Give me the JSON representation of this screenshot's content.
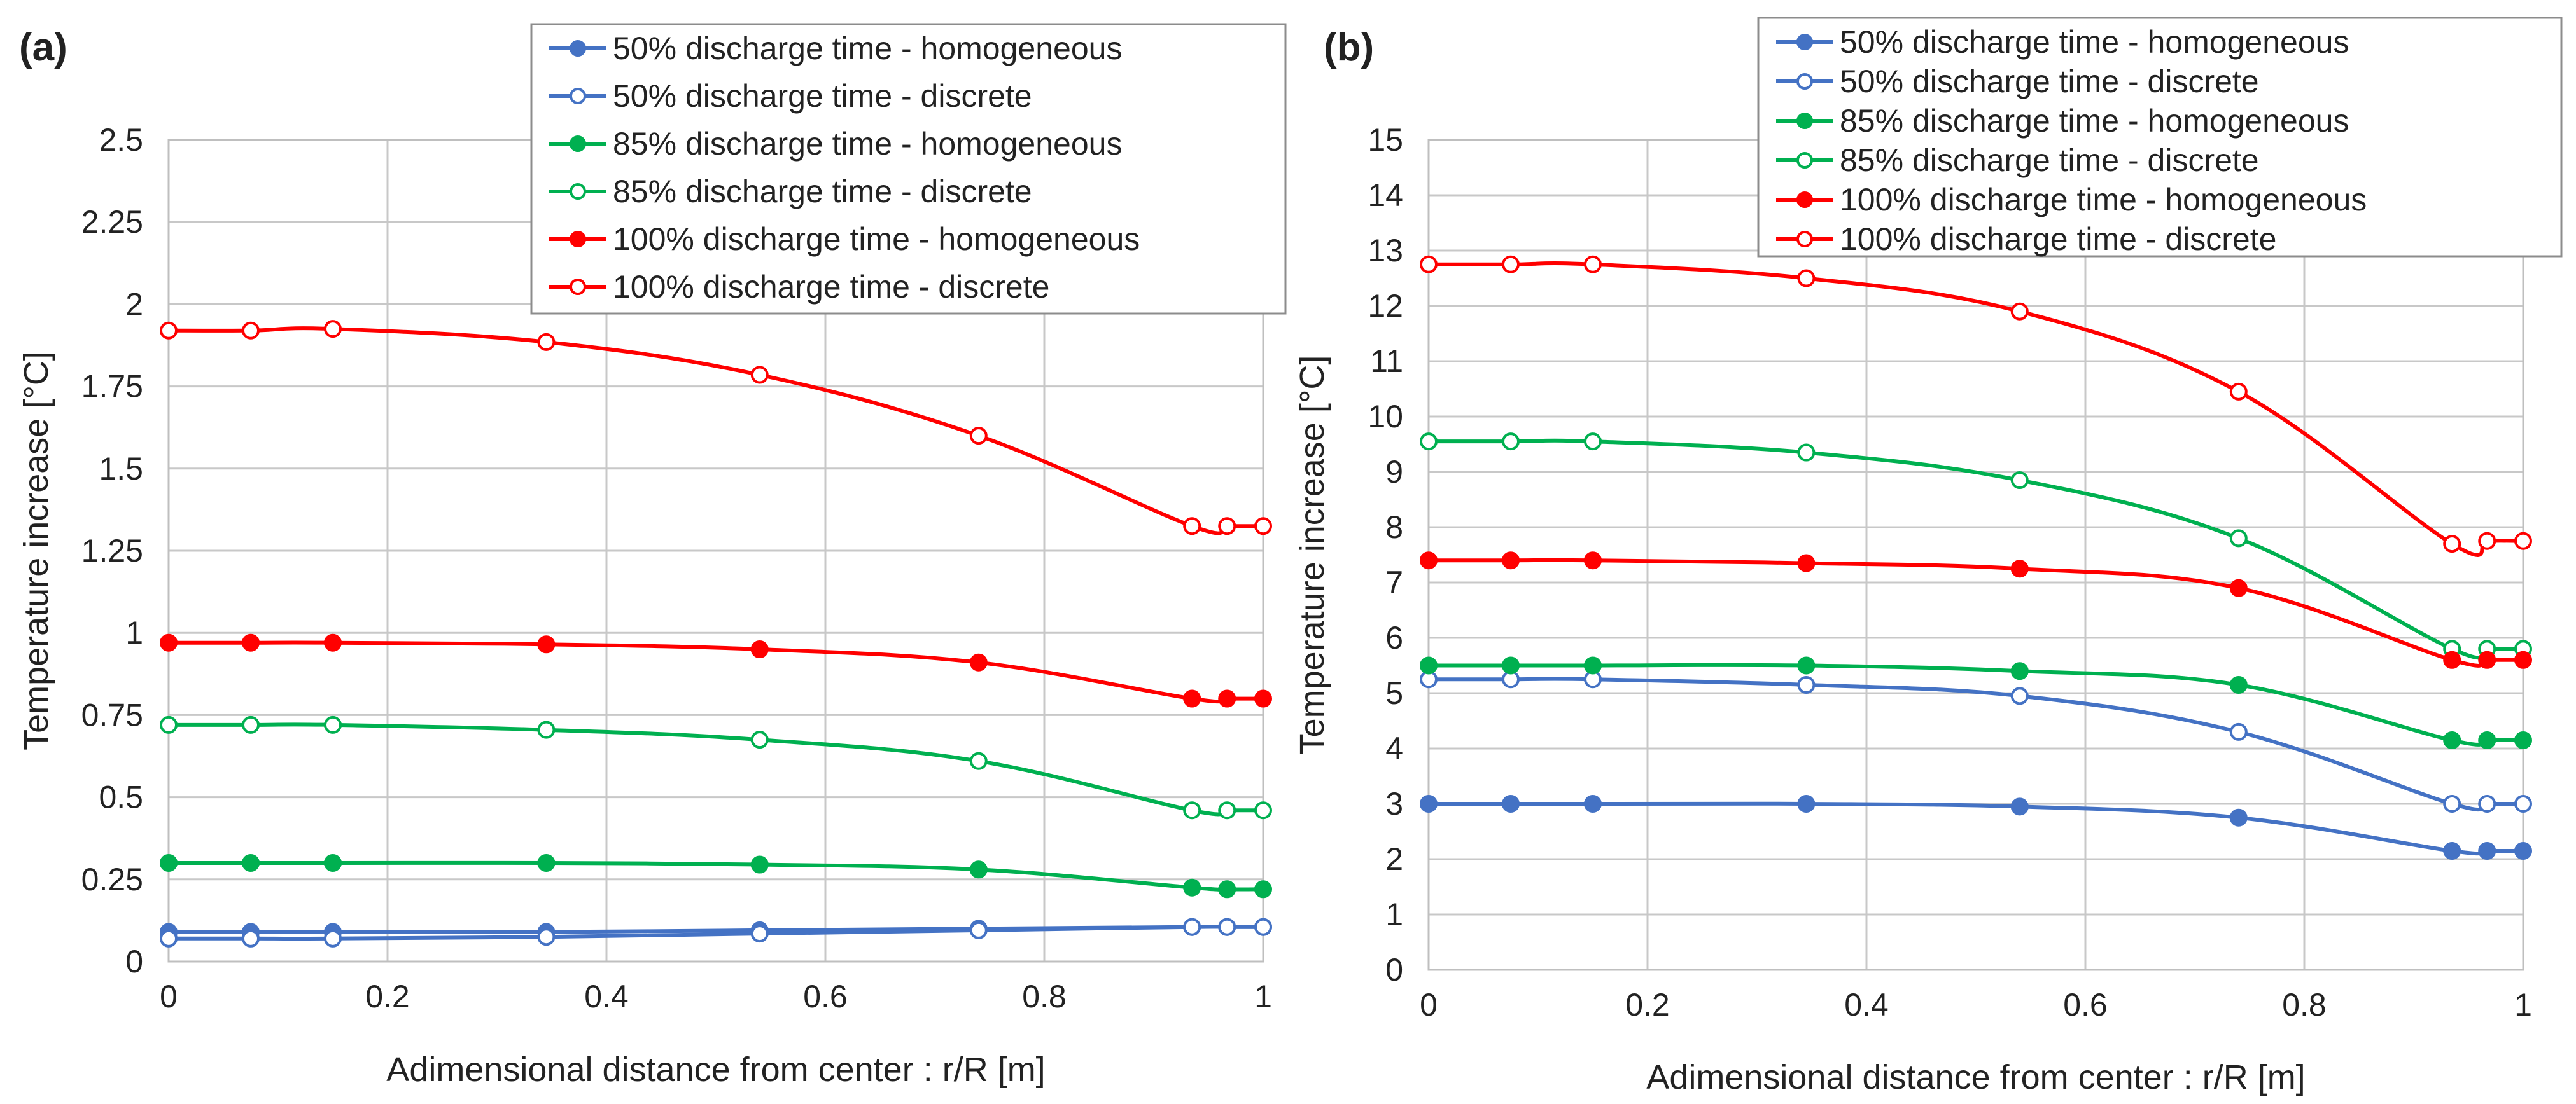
{
  "chart_data": [
    {
      "type": "line",
      "panel_label": "(a)",
      "title": "",
      "xlabel": "Adimensional distance from center : r/R [m]",
      "ylabel": "Temperature  increase [°C]",
      "xlim": [
        0,
        1
      ],
      "ylim": [
        0,
        2.5
      ],
      "x_ticks": [
        0,
        0.2,
        0.4,
        0.6,
        0.8,
        1
      ],
      "x_tick_labels": [
        "0",
        "0.2",
        "0.4",
        "0.6",
        "0.8",
        "1"
      ],
      "y_ticks": [
        0,
        0.25,
        0.5,
        0.75,
        1,
        1.25,
        1.5,
        1.75,
        2,
        2.25,
        2.5
      ],
      "y_tick_labels": [
        "0",
        "0.25",
        "0.5",
        "0.75",
        "1",
        "1.25",
        "1.5",
        "1.75",
        "2",
        "2.25",
        "2.5"
      ],
      "grid": true,
      "legend_position": "top-right",
      "x": [
        0,
        0.075,
        0.15,
        0.345,
        0.54,
        0.74,
        0.935,
        0.967,
        1
      ],
      "series": [
        {
          "name": "50% discharge time -  homogeneous",
          "color": "#4472C4",
          "marker": "filled",
          "values": [
            0.09,
            0.09,
            0.09,
            0.09,
            0.095,
            0.1,
            0.105,
            0.105,
            0.105
          ]
        },
        {
          "name": "50% discharge time - discrete",
          "color": "#4472C4",
          "marker": "open",
          "values": [
            0.07,
            0.07,
            0.07,
            0.075,
            0.085,
            0.095,
            0.105,
            0.105,
            0.105
          ]
        },
        {
          "name": "85% discharge time - homogeneous",
          "color": "#00B050",
          "marker": "filled",
          "values": [
            0.3,
            0.3,
            0.3,
            0.3,
            0.295,
            0.28,
            0.225,
            0.22,
            0.22
          ]
        },
        {
          "name": "85% discharge time - discrete",
          "color": "#00B050",
          "marker": "open",
          "values": [
            0.72,
            0.72,
            0.72,
            0.705,
            0.675,
            0.61,
            0.46,
            0.46,
            0.46
          ]
        },
        {
          "name": "100% discharge time - homogeneous",
          "color": "#FF0000",
          "marker": "filled",
          "values": [
            0.97,
            0.97,
            0.97,
            0.965,
            0.95,
            0.91,
            0.8,
            0.8,
            0.8
          ]
        },
        {
          "name": "100% discharge time - discrete",
          "color": "#FF0000",
          "marker": "open",
          "values": [
            1.92,
            1.92,
            1.925,
            1.885,
            1.785,
            1.6,
            1.325,
            1.325,
            1.325
          ]
        }
      ]
    },
    {
      "type": "line",
      "panel_label": "(b)",
      "title": "",
      "xlabel": "Adimensional distance from center : r/R [m]",
      "ylabel": "Temperature  increase [°C]",
      "xlim": [
        0,
        1
      ],
      "ylim": [
        0,
        15
      ],
      "x_ticks": [
        0,
        0.2,
        0.4,
        0.6,
        0.8,
        1
      ],
      "x_tick_labels": [
        "0",
        "0.2",
        "0.4",
        "0.6",
        "0.8",
        "1"
      ],
      "y_ticks": [
        0,
        1,
        2,
        3,
        4,
        5,
        6,
        7,
        8,
        9,
        10,
        11,
        12,
        13,
        14,
        15
      ],
      "y_tick_labels": [
        "0",
        "1",
        "2",
        "3",
        "4",
        "5",
        "6",
        "7",
        "8",
        "9",
        "10",
        "11",
        "12",
        "13",
        "14",
        "15"
      ],
      "grid": true,
      "legend_position": "top-right",
      "x": [
        0,
        0.075,
        0.15,
        0.345,
        0.54,
        0.74,
        0.935,
        0.967,
        1
      ],
      "series": [
        {
          "name": "50% discharge time -  homogeneous",
          "color": "#4472C4",
          "marker": "filled",
          "values": [
            3.0,
            3.0,
            3.0,
            3.0,
            2.95,
            2.75,
            2.15,
            2.15,
            2.15
          ]
        },
        {
          "name": "50% discharge time - discrete",
          "color": "#4472C4",
          "marker": "open",
          "values": [
            5.25,
            5.25,
            5.25,
            5.15,
            4.95,
            4.3,
            3.0,
            3.0,
            3.0
          ]
        },
        {
          "name": "85% discharge time - homogeneous",
          "color": "#00B050",
          "marker": "filled",
          "values": [
            5.5,
            5.5,
            5.5,
            5.5,
            5.4,
            5.15,
            4.15,
            4.15,
            4.15
          ]
        },
        {
          "name": "85% discharge time - discrete",
          "color": "#00B050",
          "marker": "open",
          "values": [
            9.55,
            9.55,
            9.55,
            9.35,
            8.85,
            7.8,
            5.8,
            5.8,
            5.8
          ]
        },
        {
          "name": "100% discharge time - homogeneous",
          "color": "#FF0000",
          "marker": "filled",
          "values": [
            7.4,
            7.4,
            7.4,
            7.35,
            7.25,
            6.9,
            5.6,
            5.6,
            5.6
          ]
        },
        {
          "name": "100% discharge time - discrete",
          "color": "#FF0000",
          "marker": "open",
          "values": [
            12.75,
            12.75,
            12.75,
            12.5,
            11.9,
            10.45,
            7.7,
            7.75,
            7.75
          ]
        }
      ]
    }
  ]
}
